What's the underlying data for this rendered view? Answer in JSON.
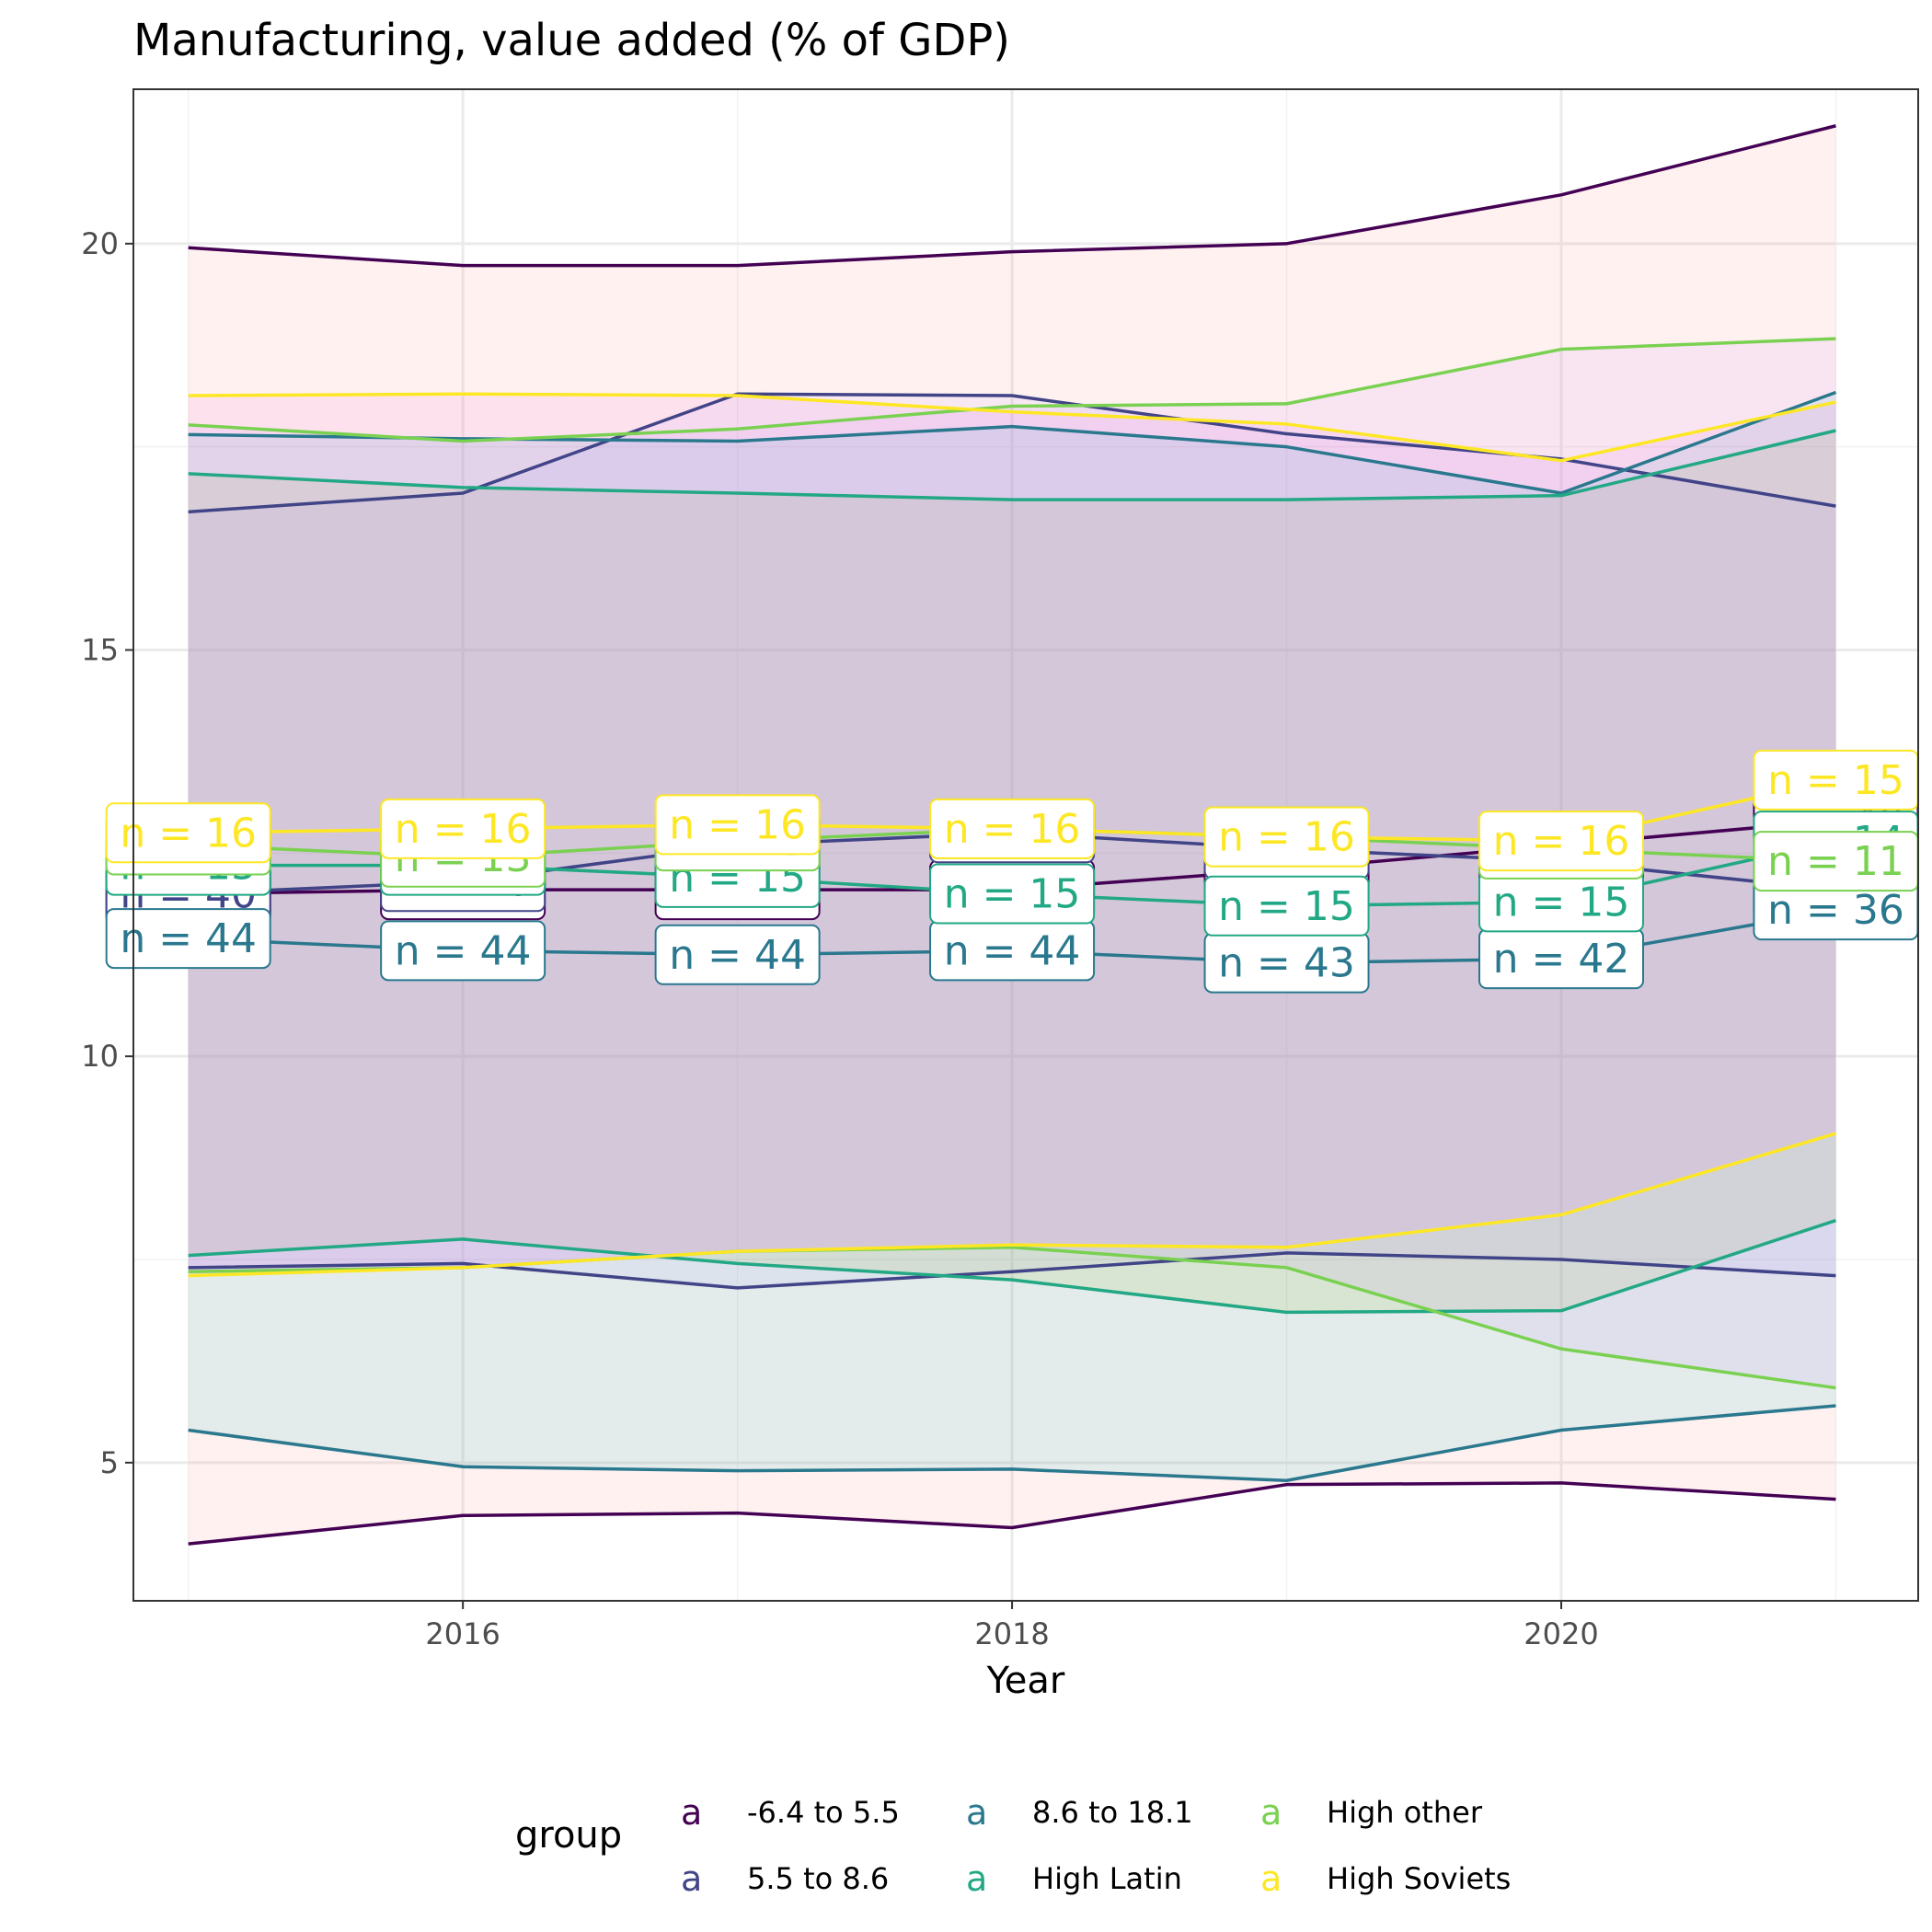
{
  "chart_data": {
    "type": "line",
    "title": "Manufacturing, value added (% of GDP)",
    "xlabel": "Year",
    "ylabel": "",
    "xlim": [
      2014.8,
      2021.3
    ],
    "ylim": [
      3.3,
      21.9
    ],
    "x": [
      2015,
      2016,
      2017,
      2018,
      2019,
      2020,
      2021
    ],
    "x_ticks": [
      2016,
      2018,
      2020
    ],
    "y_ticks": [
      5,
      10,
      15,
      20
    ],
    "grid": true,
    "legend": {
      "title": "group",
      "position": "bottom",
      "key_glyph": "a"
    },
    "series": [
      {
        "name": "-6.4 to 5.5",
        "color": "#440154",
        "band_color": "#f8766d",
        "mean": [
          12.0,
          12.05,
          12.05,
          12.05,
          12.3,
          12.6,
          12.9
        ],
        "lower": [
          4.0,
          4.35,
          4.38,
          4.2,
          4.73,
          4.75,
          4.55
        ],
        "upper": [
          19.95,
          19.73,
          19.73,
          19.9,
          20.0,
          20.6,
          21.45
        ],
        "n": [
          40,
          40,
          40,
          40,
          40,
          40,
          40
        ],
        "n_labels": [
          "n = 40",
          "n = 40",
          "n = 40",
          "n = 40",
          "n = 40",
          "n = 40",
          "n = 40"
        ]
      },
      {
        "name": "5.5 to 8.6",
        "color": "#414487",
        "band_color": "#b79fff",
        "mean": [
          12.0,
          12.15,
          12.6,
          12.75,
          12.55,
          12.4,
          12.05
        ],
        "lower": [
          7.4,
          7.45,
          7.15,
          7.35,
          7.58,
          7.5,
          7.3
        ],
        "upper": [
          16.7,
          16.93,
          18.15,
          18.13,
          17.66,
          17.35,
          16.77
        ],
        "n": [
          40,
          40,
          40,
          40,
          40,
          40,
          36
        ],
        "n_labels": [
          "n = 40",
          "n = 40",
          "n = 40",
          "n = 40",
          "n = 40",
          "n = 40",
          "n = 36"
        ]
      },
      {
        "name": "8.6 to 18.1",
        "color": "#2a788e",
        "band_color": "#00bfc4",
        "mean": [
          11.45,
          11.3,
          11.25,
          11.3,
          11.15,
          11.2,
          11.8
        ],
        "lower": [
          5.4,
          4.95,
          4.9,
          4.92,
          4.78,
          5.4,
          5.7
        ],
        "upper": [
          17.65,
          17.6,
          17.57,
          17.75,
          17.5,
          16.93,
          18.17
        ],
        "n": [
          44,
          44,
          44,
          44,
          43,
          42,
          36
        ],
        "n_labels": [
          "n = 44",
          "n = 44",
          "n = 44",
          "n = 44",
          "n = 43",
          "n = 42",
          "n = 36"
        ]
      },
      {
        "name": "High Latin",
        "color": "#22a884",
        "band_color": "#7cae00",
        "mean": [
          12.35,
          12.35,
          12.2,
          12.0,
          11.85,
          11.9,
          12.65
        ],
        "lower": [
          7.55,
          7.75,
          7.45,
          7.25,
          6.85,
          6.87,
          7.98
        ],
        "upper": [
          17.17,
          17.0,
          16.93,
          16.85,
          16.85,
          16.9,
          17.7
        ],
        "n": [
          15,
          15,
          15,
          15,
          15,
          15,
          14
        ],
        "n_labels": [
          "n = 15",
          "n = 15",
          "n = 15",
          "n = 15",
          "n = 15",
          "n = 15",
          "n = 14"
        ]
      },
      {
        "name": "High other",
        "color": "#7ad151",
        "band_color": "#c77cff",
        "mean": [
          12.6,
          12.45,
          12.65,
          12.8,
          12.7,
          12.55,
          12.4
        ],
        "lower": [
          7.35,
          7.4,
          7.6,
          7.65,
          7.4,
          6.4,
          5.92
        ],
        "upper": [
          17.77,
          17.57,
          17.72,
          18.0,
          18.03,
          18.7,
          18.83
        ],
        "n": [
          13,
          13,
          13,
          13,
          13,
          13,
          11
        ],
        "n_labels": [
          "n = 13",
          "n = 13",
          "n = 13",
          "n = 13",
          "n = 13",
          "n = 13",
          "n = 11"
        ]
      },
      {
        "name": "High Soviets",
        "color": "#fde725",
        "band_color": "#f564e3",
        "mean": [
          12.75,
          12.8,
          12.85,
          12.8,
          12.7,
          12.65,
          13.4
        ],
        "lower": [
          7.3,
          7.4,
          7.6,
          7.68,
          7.65,
          8.05,
          9.05
        ],
        "upper": [
          18.13,
          18.15,
          18.13,
          17.93,
          17.78,
          17.33,
          18.05
        ],
        "n": [
          16,
          16,
          16,
          16,
          16,
          16,
          15
        ],
        "n_labels": [
          "n = 16",
          "n = 16",
          "n = 16",
          "n = 16",
          "n = 16",
          "n = 16",
          "n = 15"
        ]
      }
    ]
  }
}
